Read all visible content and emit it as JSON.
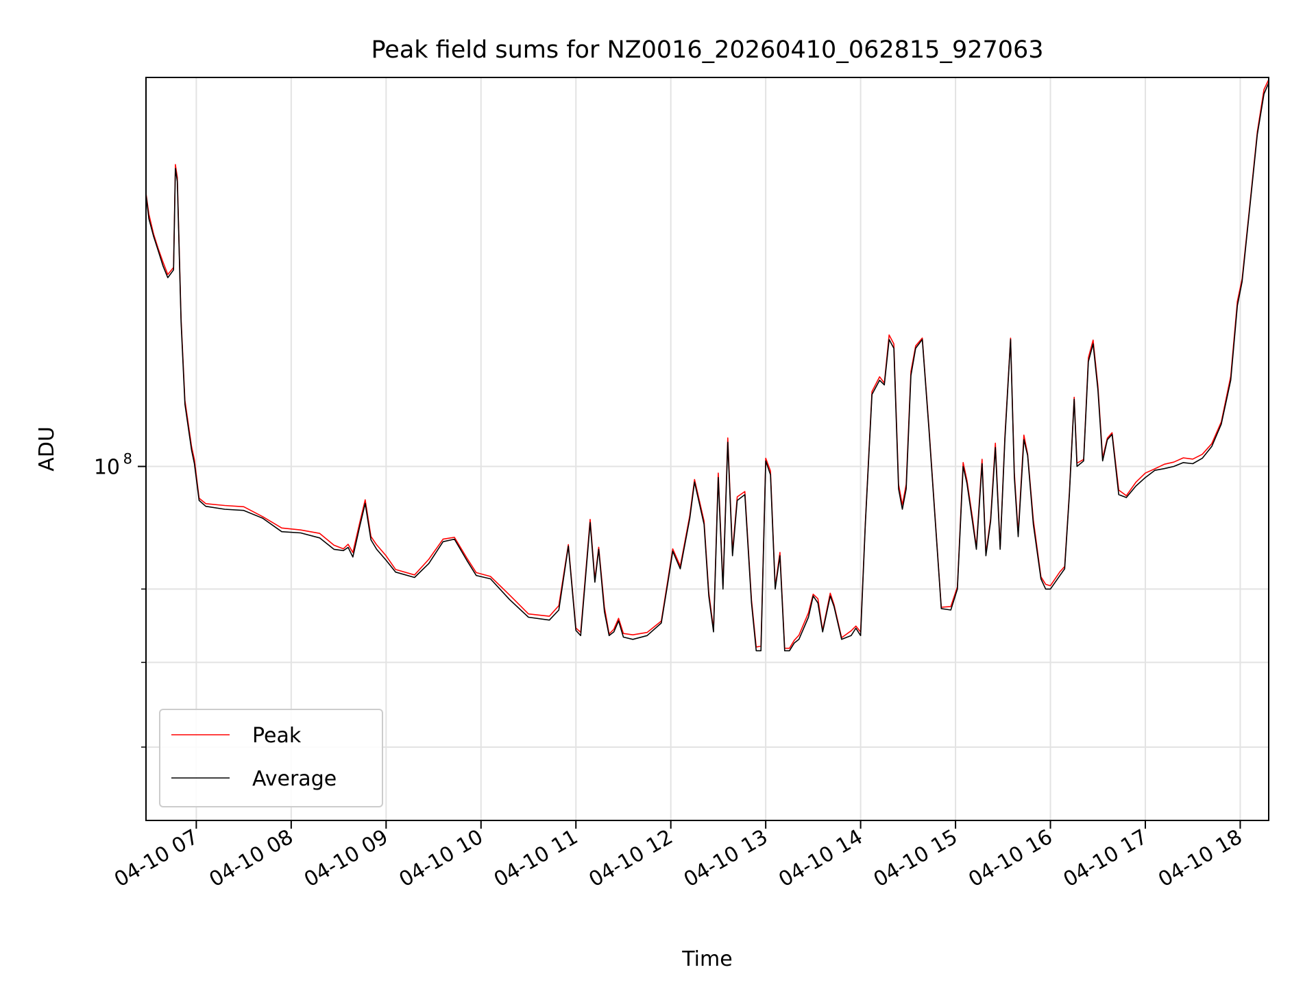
{
  "chart_data": {
    "type": "line",
    "scale": "log",
    "title": "Peak field sums for NZ0016_20260410_062815_927063",
    "xlabel": "Time",
    "ylabel": "ADU",
    "y_major_tick": {
      "value": 100000000,
      "label_base": "10",
      "label_exp": "8"
    },
    "y_minor_ticks": [
      60000000,
      70000000,
      80000000
    ],
    "ylim": [
      52500000,
      203000000
    ],
    "x_unit": "hours since 04-10 00:00",
    "xlim": [
      6.47,
      18.3
    ],
    "x_ticks": [
      {
        "hour": 7,
        "label": "04-10 07"
      },
      {
        "hour": 8,
        "label": "04-10 08"
      },
      {
        "hour": 9,
        "label": "04-10 09"
      },
      {
        "hour": 10,
        "label": "04-10 10"
      },
      {
        "hour": 11,
        "label": "04-10 11"
      },
      {
        "hour": 12,
        "label": "04-10 12"
      },
      {
        "hour": 13,
        "label": "04-10 13"
      },
      {
        "hour": 14,
        "label": "04-10 14"
      },
      {
        "hour": 15,
        "label": "04-10 15"
      },
      {
        "hour": 16,
        "label": "04-10 16"
      },
      {
        "hour": 17,
        "label": "04-10 17"
      },
      {
        "hour": 18,
        "label": "04-10 18"
      }
    ],
    "grid": true,
    "legend": {
      "position": "lower-left"
    },
    "series": [
      {
        "name": "Peak",
        "color": "#ff0000"
      },
      {
        "name": "Average",
        "color": "#000000"
      }
    ],
    "average_points": [
      [
        6.47,
        164000000
      ],
      [
        6.5,
        157000000
      ],
      [
        6.55,
        152000000
      ],
      [
        6.6,
        148000000
      ],
      [
        6.65,
        144000000
      ],
      [
        6.7,
        141000000
      ],
      [
        6.76,
        143000000
      ],
      [
        6.78,
        172000000
      ],
      [
        6.8,
        168000000
      ],
      [
        6.84,
        130000000
      ],
      [
        6.88,
        112000000
      ],
      [
        6.95,
        103000000
      ],
      [
        6.98,
        100500000
      ],
      [
        7.03,
        94000000
      ],
      [
        7.1,
        93000000
      ],
      [
        7.3,
        92500000
      ],
      [
        7.5,
        92300000
      ],
      [
        7.7,
        91000000
      ],
      [
        7.9,
        88800000
      ],
      [
        8.1,
        88600000
      ],
      [
        8.3,
        87800000
      ],
      [
        8.45,
        86000000
      ],
      [
        8.55,
        85800000
      ],
      [
        8.6,
        86300000
      ],
      [
        8.65,
        84800000
      ],
      [
        8.72,
        89500000
      ],
      [
        8.78,
        93500000
      ],
      [
        8.84,
        87500000
      ],
      [
        8.9,
        86000000
      ],
      [
        9.0,
        84300000
      ],
      [
        9.1,
        82500000
      ],
      [
        9.3,
        81700000
      ],
      [
        9.45,
        83800000
      ],
      [
        9.6,
        87200000
      ],
      [
        9.72,
        87600000
      ],
      [
        9.85,
        84300000
      ],
      [
        9.95,
        82000000
      ],
      [
        10.1,
        81500000
      ],
      [
        10.3,
        78500000
      ],
      [
        10.5,
        76000000
      ],
      [
        10.72,
        75600000
      ],
      [
        10.82,
        77000000
      ],
      [
        10.92,
        86500000
      ],
      [
        11.0,
        74200000
      ],
      [
        11.05,
        73500000
      ],
      [
        11.15,
        90300000
      ],
      [
        11.2,
        81000000
      ],
      [
        11.24,
        86000000
      ],
      [
        11.3,
        76800000
      ],
      [
        11.35,
        73500000
      ],
      [
        11.4,
        74000000
      ],
      [
        11.45,
        75500000
      ],
      [
        11.5,
        73300000
      ],
      [
        11.6,
        73000000
      ],
      [
        11.75,
        73500000
      ],
      [
        11.9,
        75200000
      ],
      [
        11.97,
        81000000
      ],
      [
        12.02,
        85700000
      ],
      [
        12.1,
        83000000
      ],
      [
        12.2,
        91000000
      ],
      [
        12.25,
        97200000
      ],
      [
        12.35,
        90000000
      ],
      [
        12.4,
        79000000
      ],
      [
        12.45,
        74000000
      ],
      [
        12.5,
        98000000
      ],
      [
        12.55,
        80000000
      ],
      [
        12.6,
        104500000
      ],
      [
        12.65,
        85000000
      ],
      [
        12.7,
        94000000
      ],
      [
        12.78,
        95000000
      ],
      [
        12.85,
        78000000
      ],
      [
        12.9,
        71500000
      ],
      [
        12.95,
        71500000
      ],
      [
        13.0,
        101000000
      ],
      [
        13.05,
        98500000
      ],
      [
        13.1,
        80000000
      ],
      [
        13.15,
        85000000
      ],
      [
        13.2,
        71500000
      ],
      [
        13.25,
        71500000
      ],
      [
        13.3,
        72500000
      ],
      [
        13.35,
        73000000
      ],
      [
        13.45,
        76000000
      ],
      [
        13.5,
        79000000
      ],
      [
        13.55,
        78000000
      ],
      [
        13.6,
        74000000
      ],
      [
        13.68,
        79000000
      ],
      [
        13.72,
        77500000
      ],
      [
        13.8,
        73000000
      ],
      [
        13.9,
        73500000
      ],
      [
        13.95,
        74500000
      ],
      [
        14.0,
        73500000
      ],
      [
        14.05,
        90000000
      ],
      [
        14.12,
        114000000
      ],
      [
        14.2,
        117000000
      ],
      [
        14.25,
        116000000
      ],
      [
        14.3,
        126000000
      ],
      [
        14.35,
        124000000
      ],
      [
        14.4,
        96000000
      ],
      [
        14.44,
        92500000
      ],
      [
        14.48,
        96000000
      ],
      [
        14.53,
        118000000
      ],
      [
        14.58,
        124000000
      ],
      [
        14.65,
        126000000
      ],
      [
        14.72,
        107000000
      ],
      [
        14.8,
        87500000
      ],
      [
        14.85,
        77200000
      ],
      [
        14.95,
        77000000
      ],
      [
        15.02,
        80000000
      ],
      [
        15.08,
        100000000
      ],
      [
        15.12,
        97000000
      ],
      [
        15.18,
        90300000
      ],
      [
        15.22,
        86000000
      ],
      [
        15.28,
        100500000
      ],
      [
        15.32,
        85000000
      ],
      [
        15.37,
        90500000
      ],
      [
        15.42,
        103500000
      ],
      [
        15.47,
        86000000
      ],
      [
        15.52,
        105000000
      ],
      [
        15.58,
        126000000
      ],
      [
        15.62,
        98000000
      ],
      [
        15.66,
        88000000
      ],
      [
        15.72,
        105000000
      ],
      [
        15.76,
        102000000
      ],
      [
        15.82,
        90000000
      ],
      [
        15.9,
        81500000
      ],
      [
        15.95,
        80000000
      ],
      [
        16.0,
        80000000
      ],
      [
        16.1,
        82000000
      ],
      [
        16.15,
        83000000
      ],
      [
        16.2,
        95000000
      ],
      [
        16.25,
        113000000
      ],
      [
        16.28,
        100000000
      ],
      [
        16.35,
        101000000
      ],
      [
        16.4,
        121000000
      ],
      [
        16.45,
        125000000
      ],
      [
        16.5,
        115000000
      ],
      [
        16.55,
        101000000
      ],
      [
        16.6,
        105000000
      ],
      [
        16.65,
        106000000
      ],
      [
        16.72,
        95000000
      ],
      [
        16.8,
        94500000
      ],
      [
        16.9,
        96500000
      ],
      [
        17.0,
        98000000
      ],
      [
        17.1,
        99300000
      ],
      [
        17.2,
        99600000
      ],
      [
        17.3,
        100000000
      ],
      [
        17.4,
        100700000
      ],
      [
        17.5,
        100500000
      ],
      [
        17.6,
        101500000
      ],
      [
        17.7,
        103700000
      ],
      [
        17.8,
        108000000
      ],
      [
        17.9,
        117000000
      ],
      [
        17.97,
        134000000
      ],
      [
        18.02,
        140000000
      ],
      [
        18.1,
        160000000
      ],
      [
        18.18,
        183000000
      ],
      [
        18.25,
        197000000
      ],
      [
        18.3,
        201000000
      ]
    ]
  }
}
